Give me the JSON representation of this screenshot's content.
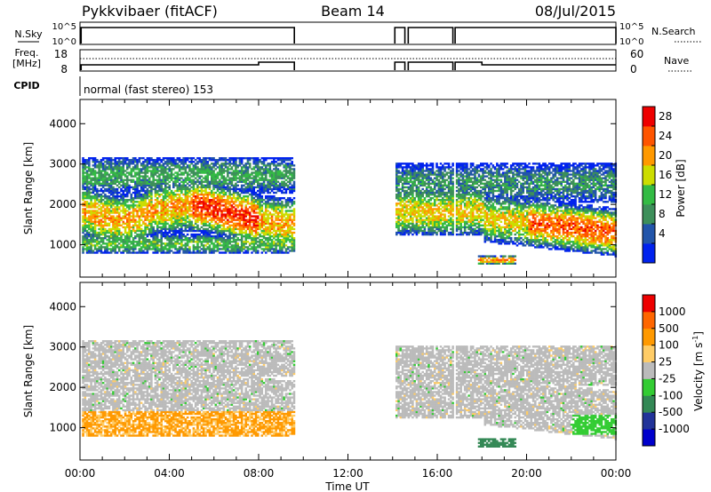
{
  "header": {
    "radar_title": "Pykkvibaer (fitACF)",
    "beam": "Beam 14",
    "date": "08/Jul/2015"
  },
  "strips": {
    "nsky": {
      "left_label": "N.Sky",
      "left_ticks": [
        "10^5",
        "10^0"
      ],
      "right_label": "N.Search",
      "right_ticks": [
        "10^5",
        "10^0"
      ]
    },
    "freq": {
      "left_label_line1": "Freq.",
      "left_label_line2": "[MHz]",
      "left_ticks": [
        "18",
        "8"
      ],
      "right_label": "Nave",
      "right_ticks": [
        "60",
        "0"
      ]
    },
    "cpid": {
      "label": "CPID",
      "text": "normal (fast stereo) 153"
    }
  },
  "x_axis": {
    "title": "Time UT",
    "ticks": [
      "00:00",
      "04:00",
      "08:00",
      "12:00",
      "16:00",
      "20:00",
      "00:00"
    ]
  },
  "colors": {
    "power": [
      "#0022ee",
      "#2255aa",
      "#3d8f5a",
      "#33bb44",
      "#ccdd00",
      "#ff9900",
      "#ff5500",
      "#ee0000"
    ],
    "velocity": [
      "#ee0000",
      "#ff6600",
      "#ff9900",
      "#ffcc66",
      "#bbbbbb",
      "#33cc33",
      "#338855",
      "#223399",
      "#0000cc"
    ]
  },
  "chart_data": [
    {
      "type": "heatmap",
      "name": "power",
      "ylabel": "Slant Range [km]",
      "yticks": [
        "4000",
        "3000",
        "2000",
        "1000"
      ],
      "ylim": [
        200,
        4600
      ],
      "xlim_hours": [
        0,
        24
      ],
      "colorbar": {
        "label": "Power [dB]",
        "ticks": [
          "28",
          "24",
          "20",
          "16",
          "12",
          "8",
          "4"
        ],
        "range": [
          0,
          32
        ]
      },
      "data_gaps_hours": [
        [
          9.6,
          14.1
        ],
        [
          16.7,
          16.8
        ]
      ],
      "echo_bands": [
        {
          "t0": 0.0,
          "t1": 9.6,
          "r_center_km": 1850,
          "r_width_km": 600,
          "peak_db": 26
        },
        {
          "t0": 14.1,
          "t1": 24.0,
          "r_center_km": 1550,
          "r_width_km": 500,
          "peak_db": 24
        },
        {
          "t0": 17.8,
          "t1": 19.5,
          "r_center_km": 600,
          "r_width_km": 120,
          "peak_db": 24
        }
      ]
    },
    {
      "type": "heatmap",
      "name": "velocity",
      "ylabel": "Slant Range [km]",
      "yticks": [
        "4000",
        "3000",
        "2000",
        "1000"
      ],
      "ylim": [
        200,
        4600
      ],
      "xlim_hours": [
        0,
        24
      ],
      "colorbar": {
        "label": "Velocity [m s",
        "label_sup": "-1",
        "label_end": "]",
        "ticks": [
          "1000",
          "500",
          "100",
          "25",
          "-25",
          "-100",
          "-500",
          "-1000"
        ]
      },
      "data_gaps_hours": [
        [
          9.6,
          14.1
        ],
        [
          16.7,
          16.8
        ]
      ]
    }
  ]
}
